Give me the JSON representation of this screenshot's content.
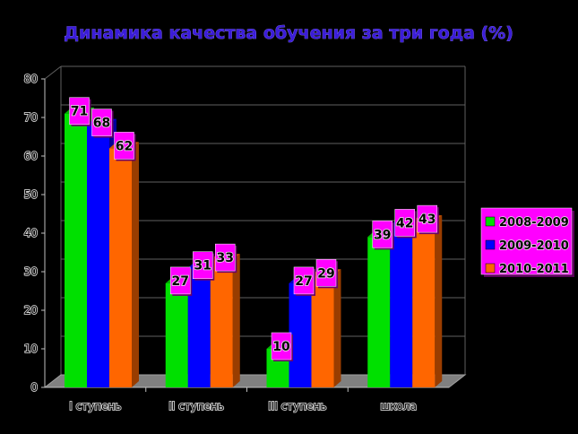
{
  "chart_data": {
    "type": "bar",
    "title": "Динамика качества обучения за три года (%)",
    "categories": [
      "I ступень",
      "II ступень",
      "III ступень",
      "школа"
    ],
    "series": [
      {
        "name": "2008-2009",
        "values": [
          71,
          27,
          10,
          39
        ],
        "color": "#00e000"
      },
      {
        "name": "2009-2010",
        "values": [
          68,
          31,
          27,
          42
        ],
        "color": "#0000ff"
      },
      {
        "name": "2010-2011",
        "values": [
          62,
          33,
          29,
          43
        ],
        "color": "#ff6600"
      }
    ],
    "ylim": [
      0,
      80
    ],
    "yticks": [
      "0",
      "10",
      "20",
      "30",
      "40",
      "50",
      "60",
      "70",
      "80"
    ],
    "grid": true,
    "legend_position": "right",
    "colors": {
      "background": "#000000",
      "wall": "#000000",
      "floor": "#808080",
      "label_box": "#ff00ff",
      "legend_box": "#ff00ff",
      "gridline": "#606060"
    }
  }
}
